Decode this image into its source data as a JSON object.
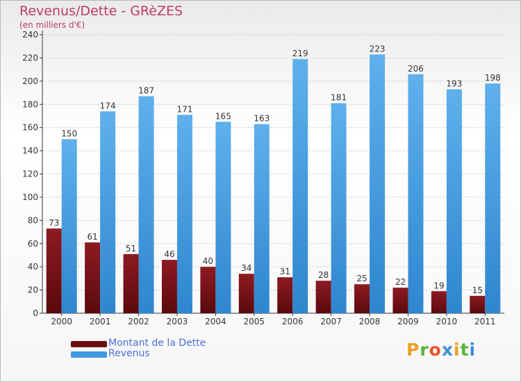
{
  "chart_data": {
    "type": "bar",
    "title": "Revenus/Dette - GRèZES",
    "subtitle": "(en milliers d'€)",
    "xlabel": "",
    "ylabel": "",
    "categories": [
      "2000",
      "2001",
      "2002",
      "2003",
      "2004",
      "2005",
      "2006",
      "2007",
      "2008",
      "2009",
      "2010",
      "2011"
    ],
    "series": [
      {
        "name": "Montant de la Dette",
        "color": "#7a1016",
        "values": [
          73,
          61,
          51,
          46,
          40,
          34,
          31,
          28,
          25,
          22,
          19,
          15
        ]
      },
      {
        "name": "Revenus",
        "color": "#3f9ae0",
        "values": [
          150,
          174,
          187,
          171,
          165,
          163,
          219,
          181,
          223,
          206,
          193,
          198
        ]
      }
    ],
    "ylim": [
      0,
      240
    ],
    "yticks": [
      0,
      20,
      40,
      60,
      80,
      100,
      120,
      140,
      160,
      180,
      200,
      220,
      240
    ],
    "grid": true,
    "legend": "bottom-left"
  },
  "brand": {
    "letters": [
      "P",
      "r",
      "o",
      "x",
      "i",
      "t",
      "i"
    ],
    "colors": [
      "#f0a020",
      "#58b23b",
      "#e8562a",
      "#3a8fd8",
      "#f0a020",
      "#58b23b",
      "#3a8fd8"
    ]
  }
}
